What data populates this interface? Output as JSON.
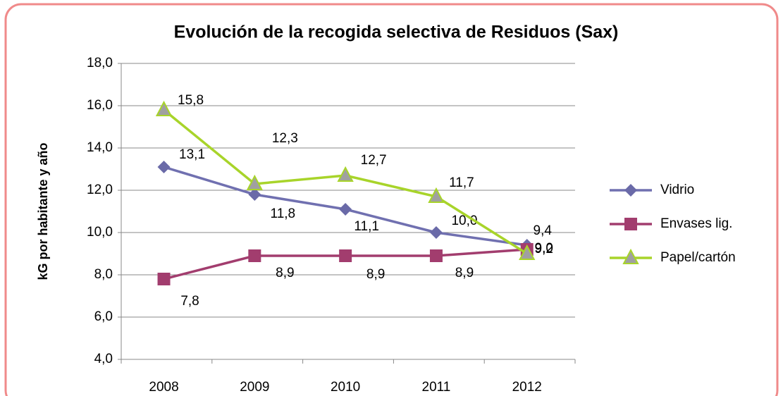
{
  "chart_data": {
    "type": "line",
    "title": "Evolución de la recogida selectiva de Residuos (Sax)",
    "y_label": "kG por habitante y  año",
    "categories": [
      "2008",
      "2009",
      "2010",
      "2011",
      "2012"
    ],
    "series": [
      {
        "name": "Vidrio",
        "color": "#7070b0",
        "marker": "diamond",
        "marker_color": "#6a6aa8",
        "label_color": "#6e6ea6",
        "values": [
          13.1,
          11.8,
          11.1,
          10.0,
          9.4
        ],
        "value_labels": [
          "13,1",
          "11,8",
          "11,1",
          "10,0",
          "9,4"
        ]
      },
      {
        "name": "Envases lig.",
        "color": "#a23d6e",
        "marker": "square",
        "marker_color": "#a23d6e",
        "label_color": "#9b2d5e",
        "values": [
          7.8,
          8.9,
          8.9,
          8.9,
          9.2
        ],
        "value_labels": [
          "7,8",
          "8,9",
          "8,9",
          "8,9",
          "9,2"
        ]
      },
      {
        "name": "Papel/cartón",
        "color": "#a8d42a",
        "marker": "triangle",
        "marker_color": "#a0a0a0",
        "label_color": "#8a8a00",
        "values": [
          15.8,
          12.3,
          12.7,
          11.7,
          9.0
        ],
        "value_labels": [
          "15,8",
          "12,3",
          "12,7",
          "11,7",
          "9,0"
        ]
      }
    ],
    "ylim": [
      4,
      18
    ],
    "yticks": [
      {
        "value": 4,
        "label": "4,0"
      },
      {
        "value": 6,
        "label": "6,0"
      },
      {
        "value": 8,
        "label": "8,0"
      },
      {
        "value": 10,
        "label": "10,0"
      },
      {
        "value": 12,
        "label": "12,0"
      },
      {
        "value": 14,
        "label": "14,0"
      },
      {
        "value": 16,
        "label": "16,0"
      },
      {
        "value": 18,
        "label": "18,0"
      }
    ],
    "grid": true,
    "legend": "right"
  }
}
